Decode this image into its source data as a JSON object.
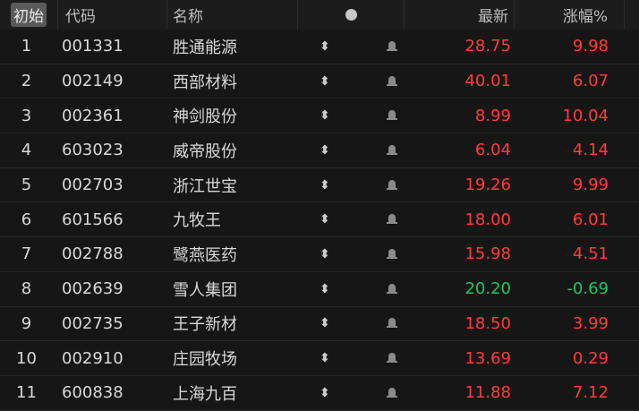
{
  "header": {
    "reset_label": "初始",
    "code": "代码",
    "name": "名称",
    "latest": "最新",
    "change_pct": "涨幅%"
  },
  "colors": {
    "up": "#ff3b3b",
    "down": "#22c55e"
  },
  "rows": [
    {
      "idx": "1",
      "code": "001331",
      "name": "胜通能源",
      "price": "28.75",
      "pct": "9.98",
      "dir": "up"
    },
    {
      "idx": "2",
      "code": "002149",
      "name": "西部材料",
      "price": "40.01",
      "pct": "6.07",
      "dir": "up"
    },
    {
      "idx": "3",
      "code": "002361",
      "name": "神剑股份",
      "price": "8.99",
      "pct": "10.04",
      "dir": "up"
    },
    {
      "idx": "4",
      "code": "603023",
      "name": "威帝股份",
      "price": "6.04",
      "pct": "4.14",
      "dir": "up"
    },
    {
      "idx": "5",
      "code": "002703",
      "name": "浙江世宝",
      "price": "19.26",
      "pct": "9.99",
      "dir": "up"
    },
    {
      "idx": "6",
      "code": "601566",
      "name": "九牧王",
      "price": "18.00",
      "pct": "6.01",
      "dir": "up"
    },
    {
      "idx": "7",
      "code": "002788",
      "name": "鹭燕医药",
      "price": "15.98",
      "pct": "4.51",
      "dir": "up"
    },
    {
      "idx": "8",
      "code": "002639",
      "name": "雪人集团",
      "price": "20.20",
      "pct": "-0.69",
      "dir": "down"
    },
    {
      "idx": "9",
      "code": "002735",
      "name": "王子新材",
      "price": "18.50",
      "pct": "3.99",
      "dir": "up"
    },
    {
      "idx": "10",
      "code": "002910",
      "name": "庄园牧场",
      "price": "13.69",
      "pct": "0.29",
      "dir": "up"
    },
    {
      "idx": "11",
      "code": "600838",
      "name": "上海九百",
      "price": "11.88",
      "pct": "7.12",
      "dir": "up"
    }
  ]
}
